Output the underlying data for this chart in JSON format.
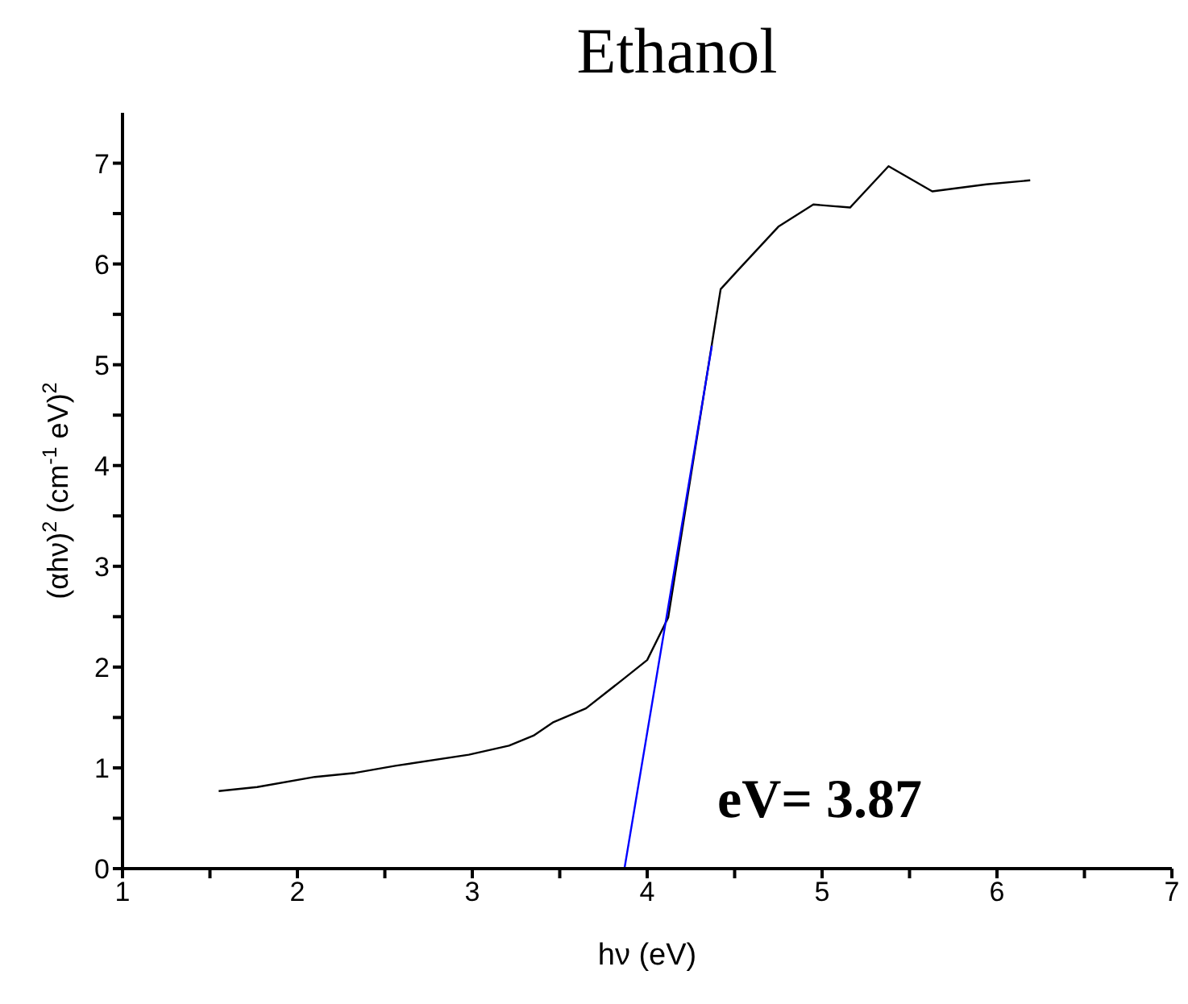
{
  "chart_data": {
    "type": "line",
    "title": "Ethanol",
    "xlabel": "hν (eV)",
    "ylabel": "(αhν)$^{2}$ (cm$^{-1}$ eV)$^{2}$",
    "xlim": [
      1,
      7
    ],
    "ylim": [
      0,
      7.5
    ],
    "xticks": [
      1,
      {
        "value": 1.5,
        "label": null
      },
      2,
      {
        "value": 2.5,
        "label": null
      },
      3,
      {
        "value": 3.5,
        "label": null
      },
      4,
      {
        "value": 4.5,
        "label": null
      },
      5,
      {
        "value": 5.5,
        "label": null
      },
      6,
      {
        "value": 6.5,
        "label": null
      },
      7
    ],
    "yticks": [
      0,
      {
        "value": 0.5,
        "label": null
      },
      1,
      {
        "value": 1.5,
        "label": null
      },
      2,
      {
        "value": 2.5,
        "label": null
      },
      3,
      {
        "value": 3.5,
        "label": null
      },
      4,
      {
        "value": 4.5,
        "label": null
      },
      5,
      {
        "value": 5.5,
        "label": null
      },
      6,
      {
        "value": 6.5,
        "label": null
      },
      7
    ],
    "marker": "none",
    "line_style": "solid",
    "series": [
      {
        "color": "#000000",
        "x": [
          1.55,
          1.77,
          2.1,
          2.33,
          2.56,
          2.98,
          3.21,
          3.35,
          3.46,
          3.65,
          3.87,
          4.0,
          4.12,
          4.42,
          4.52,
          4.75,
          4.95,
          5.16,
          5.38,
          5.63,
          5.94,
          6.19
        ],
        "values": [
          0.77,
          0.81,
          0.91,
          0.95,
          1.02,
          1.13,
          1.22,
          1.32,
          1.45,
          1.59,
          1.89,
          2.07,
          2.49,
          5.75,
          5.94,
          6.37,
          6.59,
          6.56,
          6.97,
          6.72,
          6.79,
          6.83
        ]
      },
      {
        "color": "#0000ff",
        "x": [
          3.87,
          4.37
        ],
        "values": [
          0,
          5.19
        ]
      }
    ],
    "annotations": [
      "eV= 3.87"
    ]
  }
}
